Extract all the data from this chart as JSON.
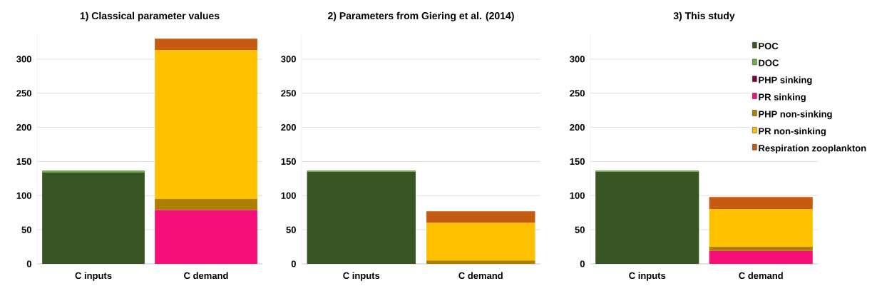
{
  "chart_data": [
    {
      "type": "bar",
      "title": "1) Classical parameter values",
      "categories": [
        "C inputs",
        "C demand"
      ],
      "stacked": true,
      "grid": "y",
      "ylim": [
        0,
        335
      ],
      "yticks": [
        0,
        50,
        100,
        150,
        200,
        250,
        300
      ],
      "series": [
        {
          "color": "#375623",
          "values": [
            134,
            0
          ]
        },
        {
          "color": "#70ad47",
          "values": [
            3,
            0
          ]
        },
        {
          "color": "#7b0041",
          "values": [
            0,
            0
          ]
        },
        {
          "color": "#f50f78",
          "values": [
            0,
            79
          ]
        },
        {
          "color": "#ae8000",
          "values": [
            0,
            16
          ]
        },
        {
          "color": "#ffc000",
          "values": [
            0,
            218
          ]
        },
        {
          "color": "#c55a11",
          "values": [
            0,
            17
          ]
        }
      ]
    },
    {
      "type": "bar",
      "title": "2) Parameters from Giering et al. (2014)",
      "categories": [
        "C inputs",
        "C demand"
      ],
      "stacked": true,
      "grid": "y",
      "ylim": [
        0,
        335
      ],
      "yticks": [
        0,
        50,
        100,
        150,
        200,
        250,
        300
      ],
      "series": [
        {
          "color": "#375623",
          "values": [
            135,
            0
          ]
        },
        {
          "color": "#70ad47",
          "values": [
            2,
            0
          ]
        },
        {
          "color": "#7b0041",
          "values": [
            0,
            0
          ]
        },
        {
          "color": "#f50f78",
          "values": [
            0,
            0
          ]
        },
        {
          "color": "#ae8000",
          "values": [
            0,
            5
          ]
        },
        {
          "color": "#ffc000",
          "values": [
            0,
            55
          ]
        },
        {
          "color": "#c55a11",
          "values": [
            0,
            17
          ]
        }
      ]
    },
    {
      "type": "bar",
      "title": "3) This study",
      "categories": [
        "C inputs",
        "C demand"
      ],
      "stacked": true,
      "grid": "y",
      "ylim": [
        0,
        335
      ],
      "yticks": [
        0,
        50,
        100,
        150,
        200,
        250,
        300
      ],
      "legend": "right",
      "series": [
        {
          "name": "POC",
          "color": "#375623",
          "values": [
            135,
            0
          ]
        },
        {
          "name": "DOC",
          "color": "#70ad47",
          "values": [
            2,
            0
          ]
        },
        {
          "name": "PHP sinking",
          "color": "#7b0041",
          "values": [
            0,
            0
          ]
        },
        {
          "name": "PR sinking",
          "color": "#f50f78",
          "values": [
            0,
            19
          ]
        },
        {
          "name": "PHP non-sinking",
          "color": "#ae8000",
          "values": [
            0,
            6
          ]
        },
        {
          "name": "PR non-sinking",
          "color": "#ffc000",
          "values": [
            0,
            55
          ]
        },
        {
          "name": "Respiration zooplankton",
          "color": "#c55a11",
          "values": [
            0,
            18
          ]
        }
      ]
    }
  ]
}
